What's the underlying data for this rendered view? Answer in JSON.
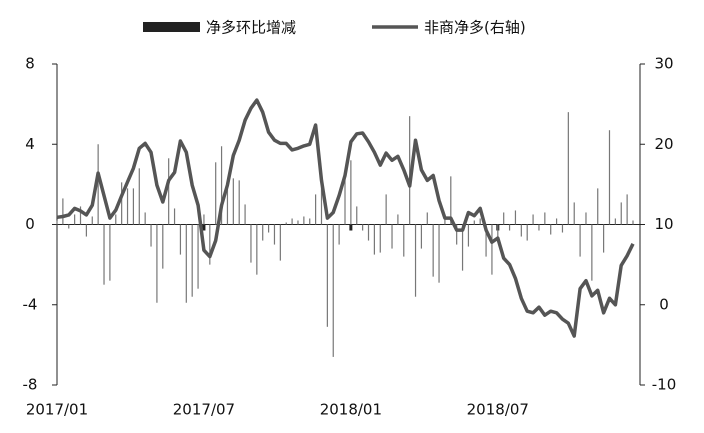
{
  "chart_data": {
    "type": "combo",
    "categories": [
      "2017/01",
      null,
      null,
      null,
      null,
      null,
      null,
      null,
      null,
      null,
      null,
      null,
      null,
      null,
      null,
      null,
      null,
      null,
      null,
      null,
      null,
      null,
      null,
      null,
      null,
      "2017/07",
      null,
      null,
      null,
      null,
      null,
      null,
      null,
      null,
      null,
      null,
      null,
      null,
      null,
      null,
      null,
      null,
      null,
      null,
      null,
      null,
      null,
      null,
      null,
      null,
      "2018/01",
      null,
      null,
      null,
      null,
      null,
      null,
      null,
      null,
      null,
      null,
      null,
      null,
      null,
      null,
      null,
      null,
      null,
      null,
      null,
      null,
      null,
      null,
      null,
      null,
      "2018/07",
      null,
      null,
      null,
      null,
      null,
      null,
      null,
      null,
      null,
      null,
      null,
      null,
      null,
      null,
      null,
      null,
      null,
      null,
      null,
      null,
      null,
      null,
      null
    ],
    "series": [
      {
        "name": "净多环比增减",
        "type": "bar",
        "color": "#777777",
        "values": [
          0.2,
          1.3,
          -0.2,
          0.5,
          0.9,
          -0.6,
          0.4,
          4.0,
          -3.0,
          -2.8,
          0.5,
          2.1,
          1.8,
          1.8,
          2.8,
          0.6,
          -1.1,
          -3.9,
          -2.2,
          3.3,
          0.8,
          -1.5,
          -3.9,
          -3.6,
          -3.2,
          0.5,
          -2.0,
          3.1,
          3.9,
          2.1,
          2.3,
          2.2,
          1.0,
          -1.9,
          -2.5,
          -0.8,
          -0.4,
          -1.0,
          -1.8,
          0.1,
          0.3,
          0.2,
          0.4,
          0.3,
          1.5,
          2.3,
          -5.1,
          -6.6,
          -1.0,
          2.3,
          3.2,
          0.9,
          -0.3,
          -0.8,
          -1.5,
          -1.4,
          1.5,
          -1.2,
          0.5,
          -1.6,
          5.4,
          -3.6,
          -1.2,
          0.6,
          -2.6,
          -2.9,
          0.4,
          2.4,
          -1.0,
          -2.3,
          -1.1,
          0.2,
          0.3,
          -1.6,
          -2.5,
          -0.6,
          0.6,
          -0.3,
          0.7,
          -0.6,
          -0.8,
          0.5,
          -0.3,
          0.6,
          -0.5,
          0.3,
          -0.4,
          5.6,
          1.1,
          -1.6,
          0.6,
          -2.8,
          1.8,
          -1.4,
          4.7,
          0.3,
          1.1,
          1.5,
          0.2
        ]
      },
      {
        "name": "非商净多(右轴)",
        "type": "line",
        "axis": "y2",
        "color": "#555555",
        "values": [
          10.9,
          11,
          11.2,
          12,
          11.7,
          11.2,
          12.4,
          16.4,
          13.6,
          10.8,
          11.8,
          13.6,
          15.3,
          17,
          19.5,
          20.1,
          19,
          14.9,
          12.8,
          15.5,
          16.5,
          20.4,
          19,
          14.9,
          12.4,
          6.8,
          6,
          8,
          12.4,
          14.9,
          18.6,
          20.5,
          23,
          24.5,
          25.5,
          24,
          21.5,
          20.5,
          20.1,
          20.1,
          19.3,
          19.5,
          19.8,
          20,
          22.4,
          15.5,
          10.8,
          11.5,
          13.6,
          16.1,
          20.3,
          21.3,
          21.4,
          20.3,
          19,
          17.4,
          18.9,
          18,
          18.5,
          16.8,
          14.8,
          20.5,
          16.8,
          15.5,
          16.1,
          13,
          10.8,
          10.8,
          9.3,
          9.3,
          11.5,
          11.1,
          12,
          9.3,
          7.8,
          8.3,
          5.8,
          5,
          3.3,
          0.8,
          -0.8,
          -1,
          -0.3,
          -1.3,
          -0.8,
          -1,
          -1.8,
          -2.3,
          -3.9,
          2,
          3,
          1.1,
          1.8,
          -1,
          0.8,
          0,
          4.9,
          6.1,
          7.6
        ]
      }
    ],
    "ylim": [
      -8,
      8
    ],
    "yticks": [
      -8,
      -4,
      0,
      4,
      8
    ],
    "y2lim": [
      -10,
      30
    ],
    "y2ticks": [
      -10,
      0,
      10,
      20,
      30
    ]
  }
}
